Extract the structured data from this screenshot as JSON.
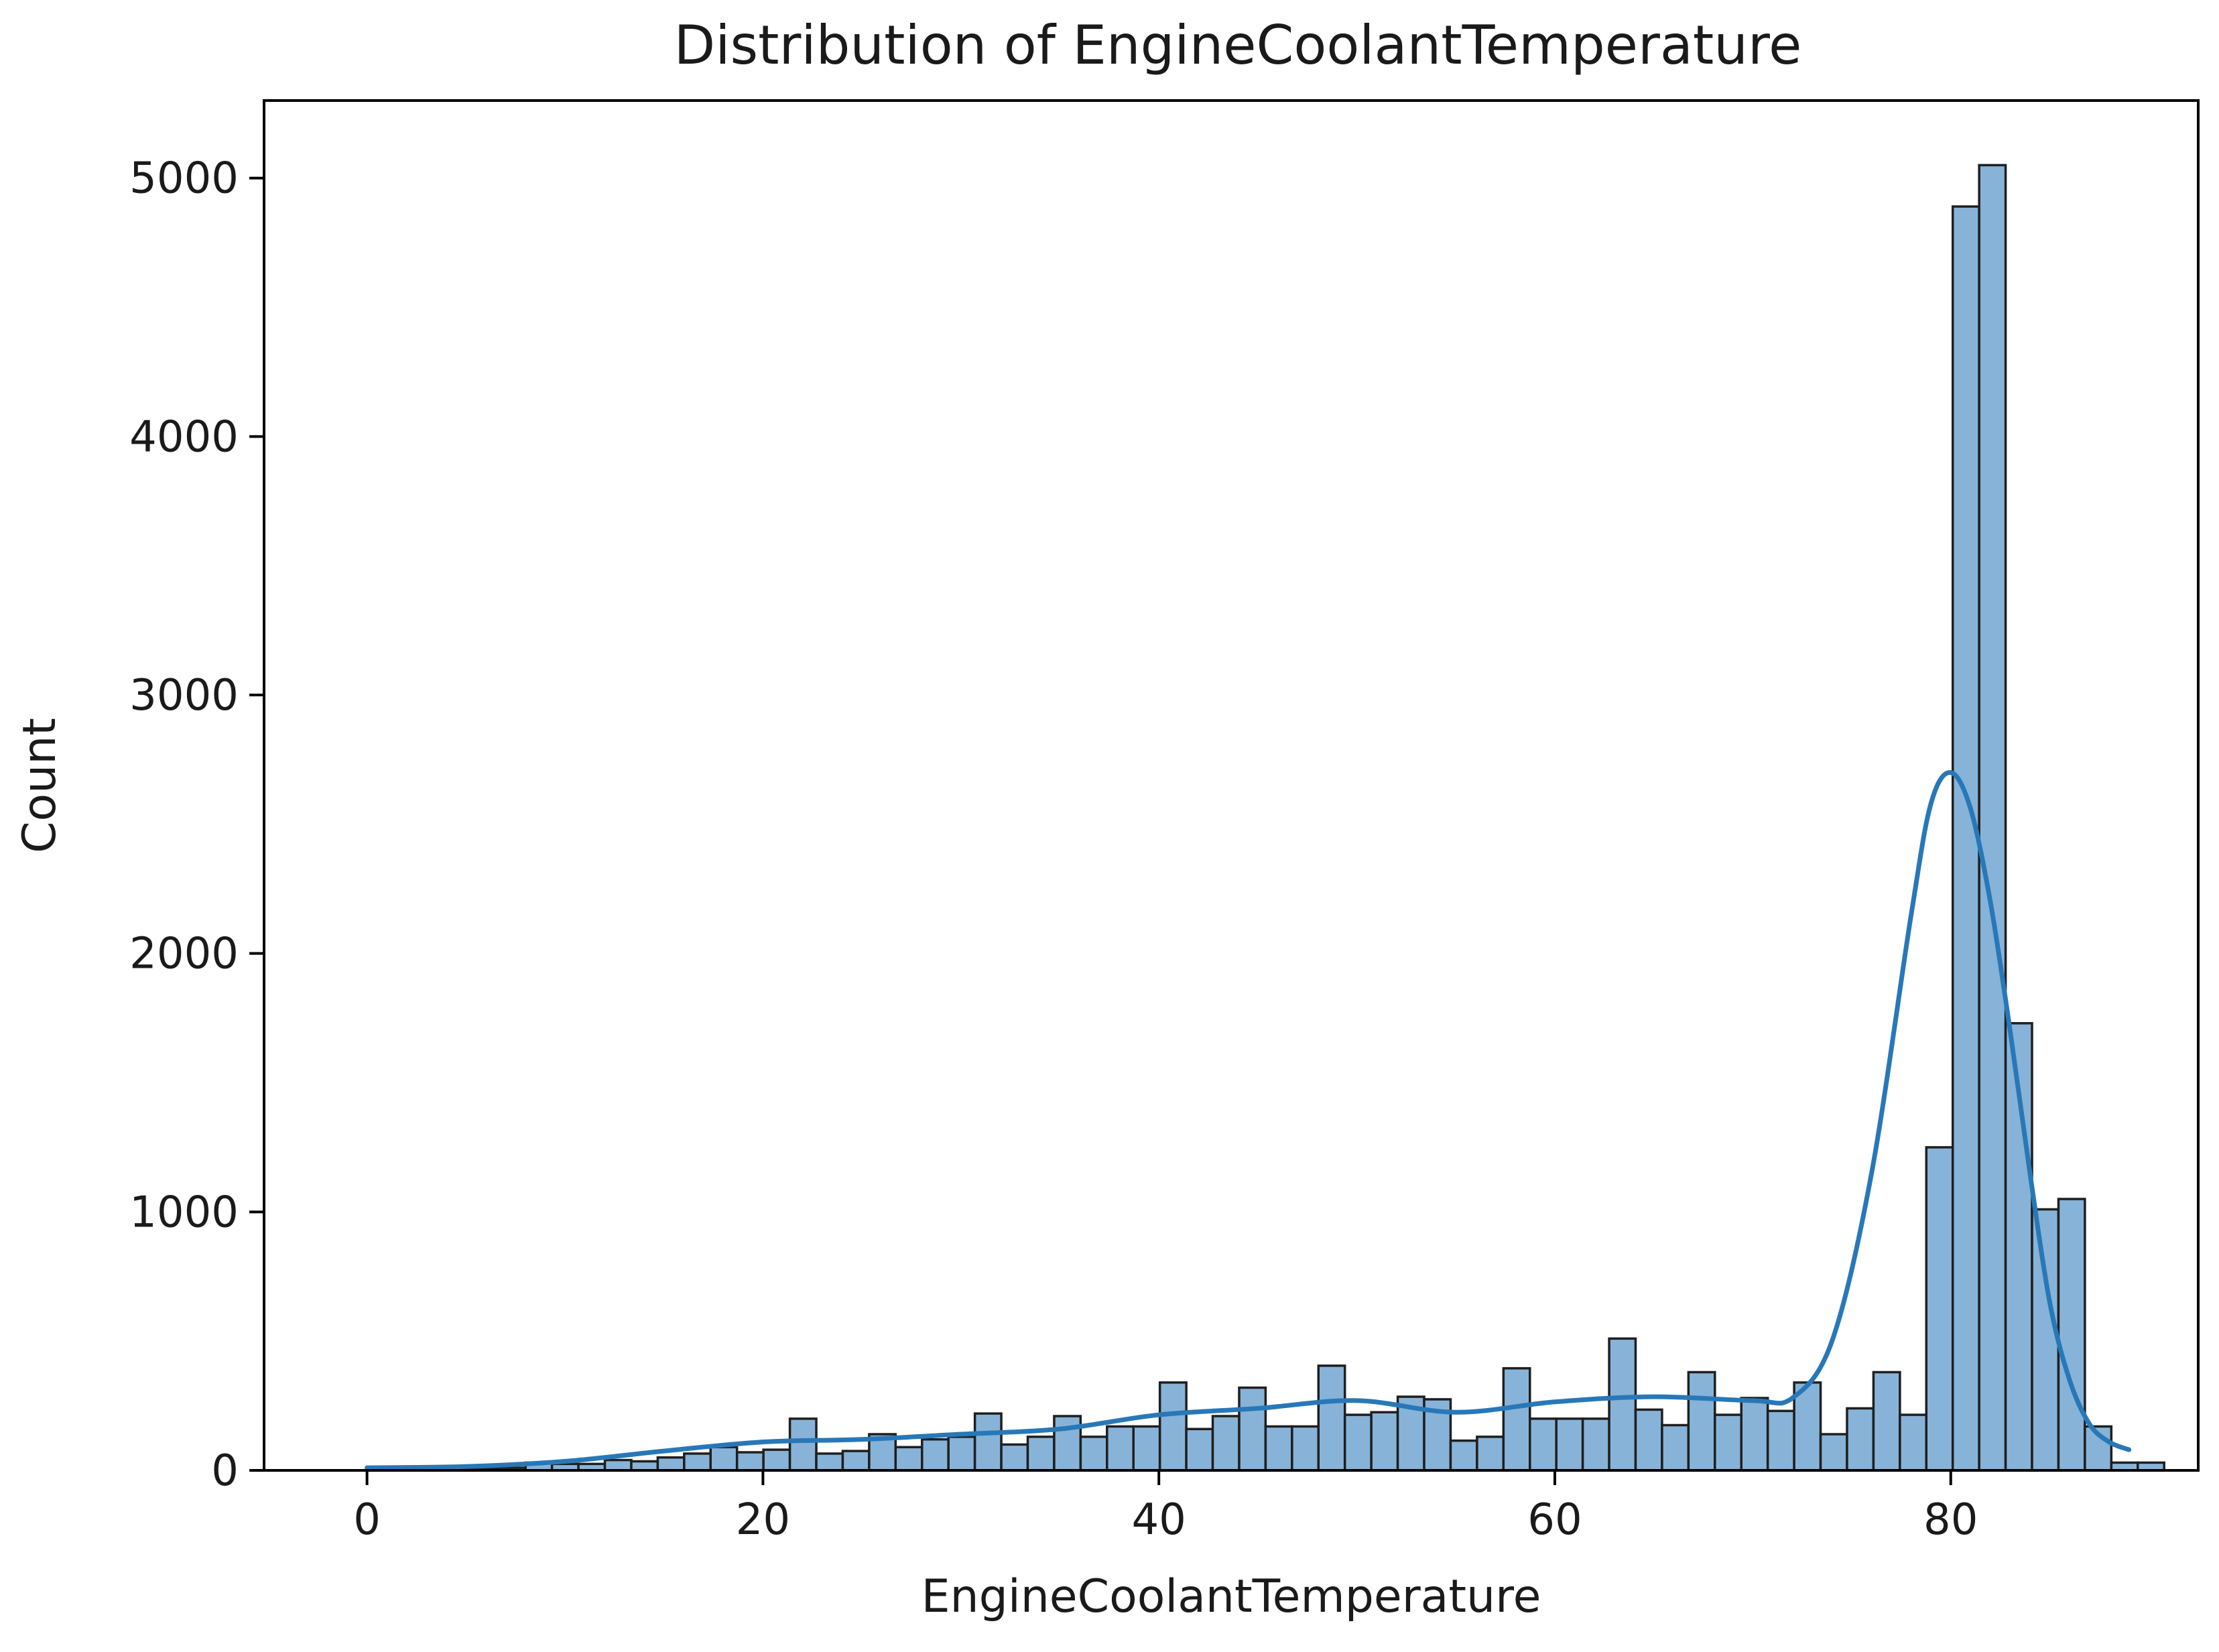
{
  "chart_data": {
    "type": "bar",
    "subtype": "histogram-with-kde",
    "title": "Distribution of EngineCoolantTemperature",
    "xlabel": "EngineCoolantTemperature",
    "ylabel": "Count",
    "xlim": [
      -5.2,
      92.5
    ],
    "ylim": [
      0,
      5300
    ],
    "grid": false,
    "x_ticks": [
      0,
      20,
      40,
      60,
      80
    ],
    "y_ticks": [
      0,
      1000,
      2000,
      3000,
      4000,
      5000
    ],
    "bin_width": 1.335,
    "bin_start": 0,
    "values": [
      3,
      5,
      4,
      5,
      6,
      10,
      30,
      25,
      25,
      40,
      35,
      50,
      65,
      90,
      70,
      80,
      200,
      65,
      75,
      140,
      90,
      120,
      130,
      220,
      100,
      130,
      210,
      130,
      170,
      170,
      340,
      160,
      210,
      320,
      170,
      170,
      405,
      215,
      225,
      285,
      275,
      115,
      130,
      395,
      200,
      200,
      200,
      510,
      235,
      175,
      380,
      215,
      280,
      230,
      340,
      140,
      240,
      380,
      215,
      1250,
      4890,
      5050,
      1730,
      1010,
      1050,
      170,
      30,
      30
    ],
    "kde": {
      "x": [
        0,
        5,
        10,
        15,
        20,
        25,
        30,
        35,
        40,
        45,
        50,
        55,
        60,
        65,
        70,
        72,
        74,
        76,
        78,
        79,
        80,
        81,
        82,
        83,
        84,
        85,
        86,
        87,
        88,
        89
      ],
      "y": [
        10,
        15,
        35,
        75,
        110,
        120,
        140,
        160,
        215,
        240,
        270,
        225,
        265,
        285,
        270,
        280,
        500,
        1150,
        2150,
        2580,
        2700,
        2560,
        2200,
        1700,
        1150,
        650,
        350,
        180,
        110,
        80
      ]
    },
    "colors": {
      "bar_fill": "#87b3d8",
      "bar_edge": "#1f1f1f",
      "kde_line": "#2878b8"
    }
  }
}
